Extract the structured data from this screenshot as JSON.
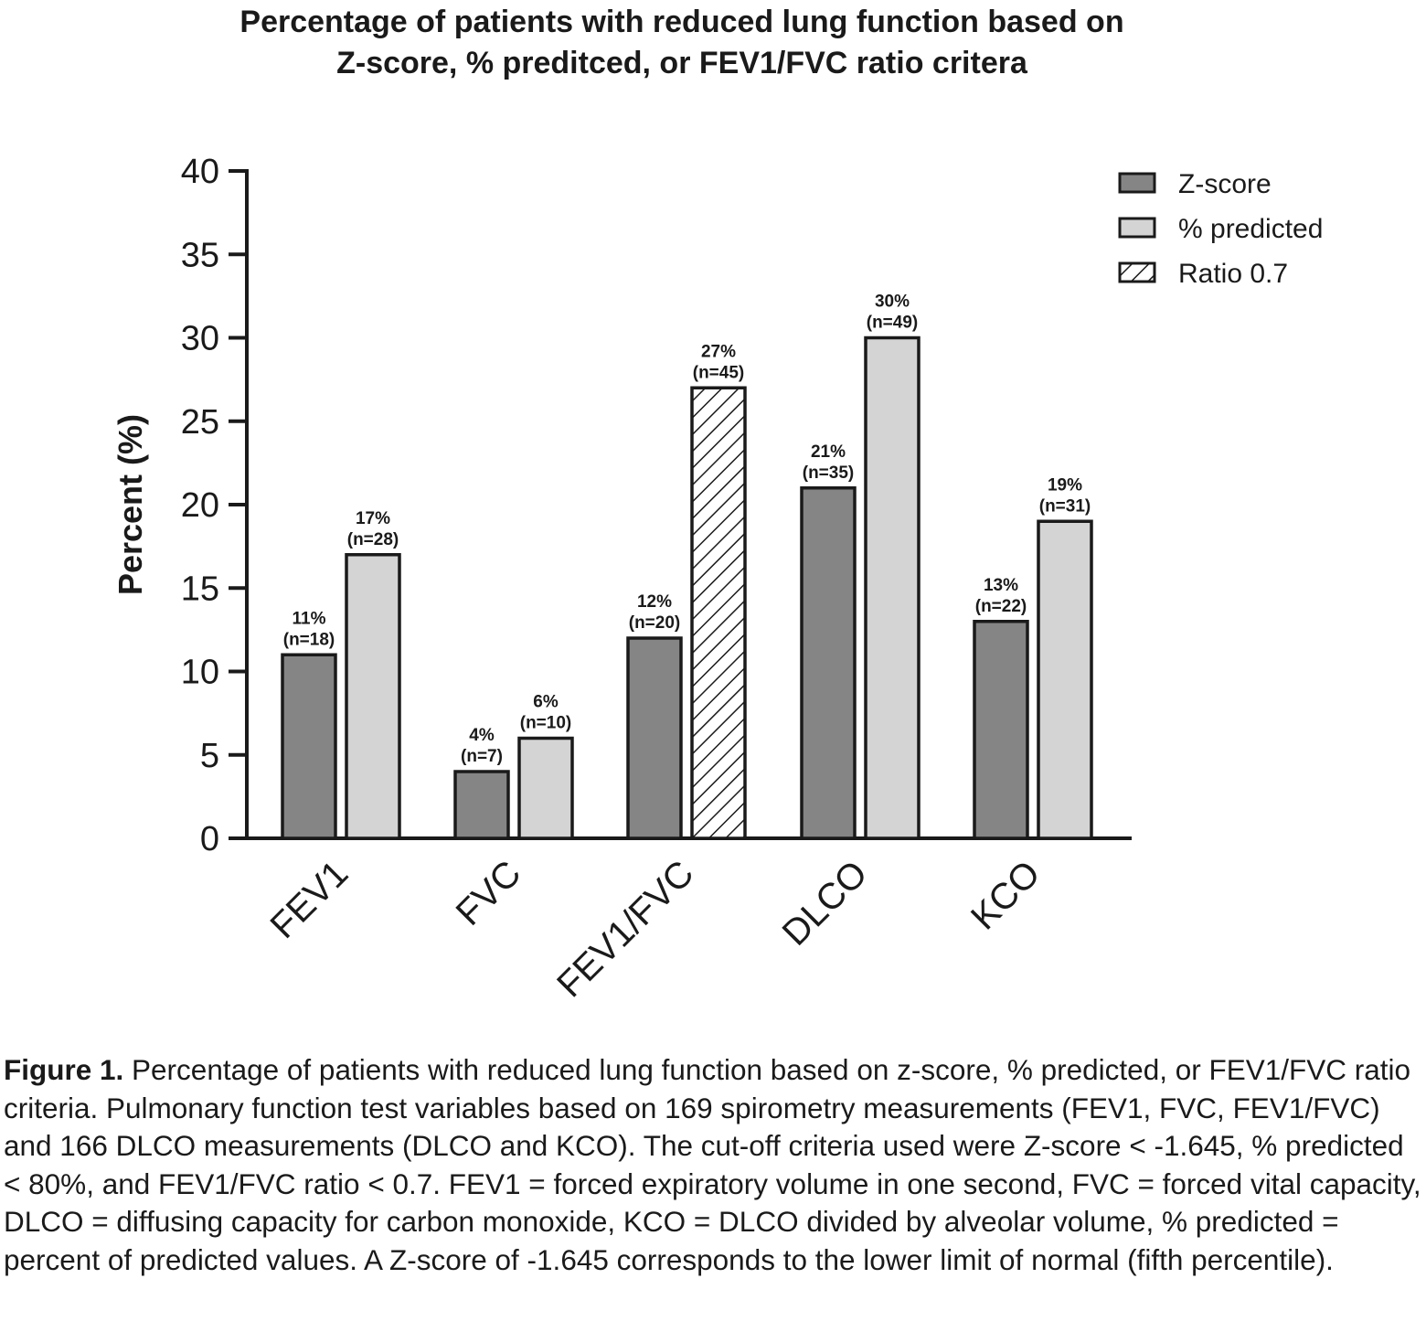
{
  "chart_data": {
    "type": "bar",
    "title": [
      "Percentage of patients with reduced lung function based on",
      "Z-score, % preditced, or FEV1/FVC ratio critera"
    ],
    "xlabel": "",
    "ylabel": "Percent (%)",
    "ylim": [
      0,
      40
    ],
    "yticks": [
      0,
      5,
      10,
      15,
      20,
      25,
      30,
      35,
      40
    ],
    "grid": false,
    "legend_position": "top-right",
    "categories": [
      "FEV1",
      "FVC",
      "FEV1/FVC",
      "DLCO",
      "KCO"
    ],
    "series": [
      {
        "name": "Z-score",
        "color": "#858585",
        "pattern": "solid",
        "values": [
          11,
          4,
          12,
          21,
          13
        ],
        "labels": [
          "11%",
          "4%",
          "12%",
          "21%",
          "13%"
        ],
        "counts": [
          "(n=18)",
          "(n=7)",
          "(n=20)",
          "(n=35)",
          "(n=22)"
        ]
      },
      {
        "name": "% predicted",
        "color": "#d4d4d4",
        "pattern": "solid",
        "values": [
          17,
          6,
          null,
          30,
          19
        ],
        "labels": [
          "17%",
          "6%",
          null,
          "30%",
          "19%"
        ],
        "counts": [
          "(n=28)",
          "(n=10)",
          null,
          "(n=49)",
          "(n=31)"
        ]
      },
      {
        "name": "Ratio 0.7",
        "color": "#ffffff",
        "pattern": "hatch",
        "values": [
          null,
          null,
          27,
          null,
          null
        ],
        "labels": [
          null,
          null,
          "27%",
          null,
          null
        ],
        "counts": [
          null,
          null,
          "(n=45)",
          null,
          null
        ]
      }
    ]
  },
  "caption": {
    "label": "Figure 1.",
    "text": " Percentage of patients with reduced lung function based on z-score, % predicted, or FEV1/FVC ratio criteria. Pulmonary function test variables based on 169 spirometry measurements (FEV1, FVC, FEV1/FVC) and 166 DLCO measurements (DLCO and KCO). The cut-off criteria used were Z-score < -1.645, % predicted < 80%, and FEV1/FVC ratio < 0.7. FEV1 = forced expiratory volume in one second, FVC = forced vital capacity, DLCO = diffusing capacity for carbon monoxide, KCO = DLCO divided by alveolar volume, % predicted = percent of predicted values. A Z-score of -1.645 corresponds to the lower limit of normal (fifth percentile)."
  }
}
